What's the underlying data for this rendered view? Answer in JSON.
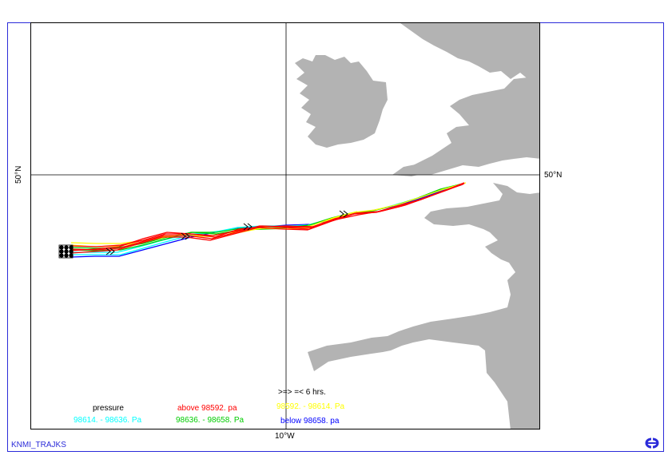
{
  "map": {
    "lat_label_left": "50°N",
    "lat_label_right": "50°N",
    "lon_label_bottom": "10°W",
    "land_color": "#b3b3b3",
    "frame_color": "#2b2bd9"
  },
  "legend": {
    "title": "pressure",
    "arrow_note": ">=> =< 6 hrs.",
    "classes": [
      {
        "label": "above 98592. pa",
        "color": "#ff0000"
      },
      {
        "label": "98592. - 98614. Pa",
        "color": "#ffff00"
      },
      {
        "label": "98614. - 98636. Pa",
        "color": "#00ffff"
      },
      {
        "label": "98636. - 98658. Pa",
        "color": "#00cc00"
      },
      {
        "label": "below 98658. pa",
        "color": "#0000ff"
      }
    ]
  },
  "footer": {
    "credit": "KNMI_TRAJKS",
    "logo_icon": "ecmwf-logo-icon"
  }
}
